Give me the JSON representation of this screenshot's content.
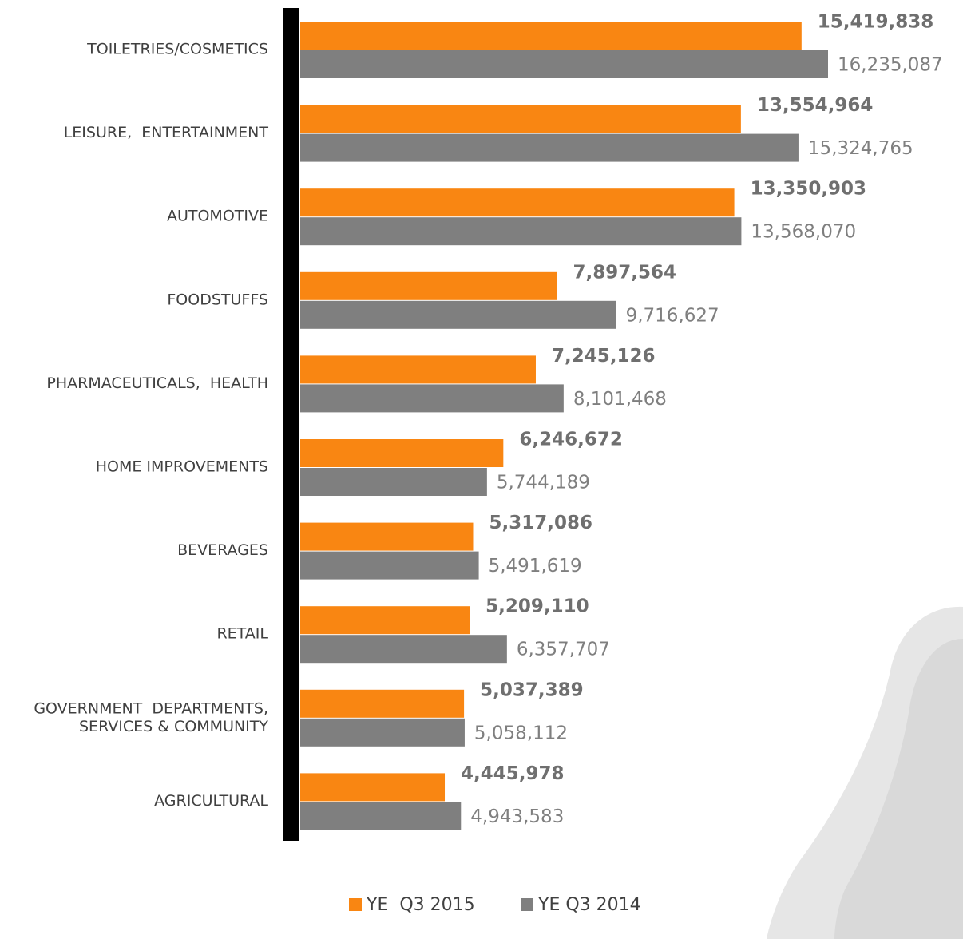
{
  "chart_data": {
    "type": "bar",
    "orientation": "horizontal",
    "categories": [
      "TOILETRIES/COSMETICS",
      "LEISURE,  ENTERTAINMENT",
      "AUTOMOTIVE",
      "FOODSTUFFS",
      "PHARMACEUTICALS,  HEALTH",
      "HOME IMPROVEMENTS",
      "BEVERAGES",
      "RETAIL",
      "GOVERNMENT  DEPARTMENTS,\nSERVICES & COMMUNITY",
      "AGRICULTURAL"
    ],
    "series": [
      {
        "name": "YE  Q3 2015",
        "color": "#f98612",
        "values": [
          15419838,
          13554964,
          13350903,
          7897564,
          7245126,
          6246672,
          5317086,
          5209110,
          5037389,
          4445978
        ],
        "value_labels": [
          "15,419,838",
          "13,554,964",
          "13,350,903",
          "7,897,564",
          "7,245,126",
          "6,246,672",
          "5,317,086",
          "5,209,110",
          "5,037,389",
          "4,445,978"
        ]
      },
      {
        "name": "YE Q3 2014",
        "color": "#7f7f7f",
        "values": [
          16235087,
          15324765,
          13568070,
          9716627,
          8101468,
          5744189,
          5491619,
          6357707,
          5058112,
          4943583
        ],
        "value_labels": [
          "16,235,087",
          "15,324,765",
          "13,568,070",
          "9,716,627",
          "8,101,468",
          "5,744,189",
          "5,491,619",
          "6,357,707",
          "5,058,112",
          "4,943,583"
        ]
      }
    ],
    "legend": "bottom",
    "grid": false
  }
}
